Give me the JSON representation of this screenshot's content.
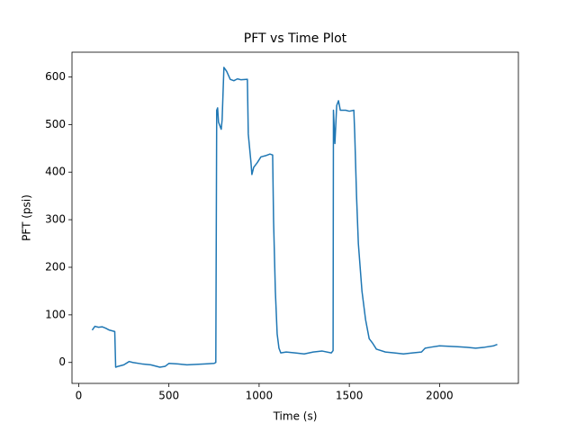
{
  "chart_data": {
    "type": "line",
    "title": "PFT vs Time Plot",
    "x_label": "Time (s)",
    "y_label": "PFT (psi)",
    "color": "#1f77b4",
    "grid": false,
    "xlim": [
      -37,
      2437
    ],
    "xticks": [
      0,
      500,
      1000,
      1500,
      2000
    ],
    "ylim": [
      -44,
      652
    ],
    "yticks": [
      0,
      100,
      200,
      300,
      400,
      500,
      600
    ],
    "x": [
      75,
      90,
      110,
      130,
      150,
      170,
      200,
      205,
      220,
      250,
      280,
      300,
      350,
      400,
      450,
      480,
      500,
      550,
      600,
      650,
      700,
      750,
      760,
      765,
      770,
      775,
      790,
      795,
      805,
      820,
      840,
      860,
      880,
      900,
      935,
      940,
      955,
      960,
      970,
      990,
      1010,
      1040,
      1060,
      1075,
      1080,
      1090,
      1100,
      1110,
      1120,
      1150,
      1200,
      1250,
      1300,
      1350,
      1400,
      1410,
      1412,
      1420,
      1430,
      1440,
      1450,
      1480,
      1500,
      1525,
      1530,
      1540,
      1550,
      1570,
      1590,
      1610,
      1630,
      1650,
      1700,
      1750,
      1800,
      1850,
      1900,
      1920,
      1950,
      2000,
      2050,
      2100,
      2150,
      2200,
      2250,
      2300,
      2320
    ],
    "values": [
      68,
      76,
      74,
      75,
      72,
      68,
      65,
      -10,
      -8,
      -5,
      2,
      0,
      -3,
      -5,
      -10,
      -8,
      -2,
      -3,
      -5,
      -4,
      -3,
      -2,
      0,
      530,
      535,
      505,
      490,
      510,
      620,
      612,
      595,
      592,
      596,
      594,
      595,
      480,
      420,
      395,
      410,
      420,
      432,
      435,
      438,
      436,
      300,
      150,
      60,
      30,
      20,
      22,
      20,
      18,
      22,
      24,
      20,
      25,
      530,
      460,
      540,
      550,
      530,
      530,
      528,
      530,
      480,
      350,
      250,
      150,
      90,
      50,
      40,
      28,
      22,
      20,
      18,
      20,
      22,
      30,
      32,
      35,
      34,
      33,
      32,
      30,
      32,
      35,
      38
    ]
  }
}
